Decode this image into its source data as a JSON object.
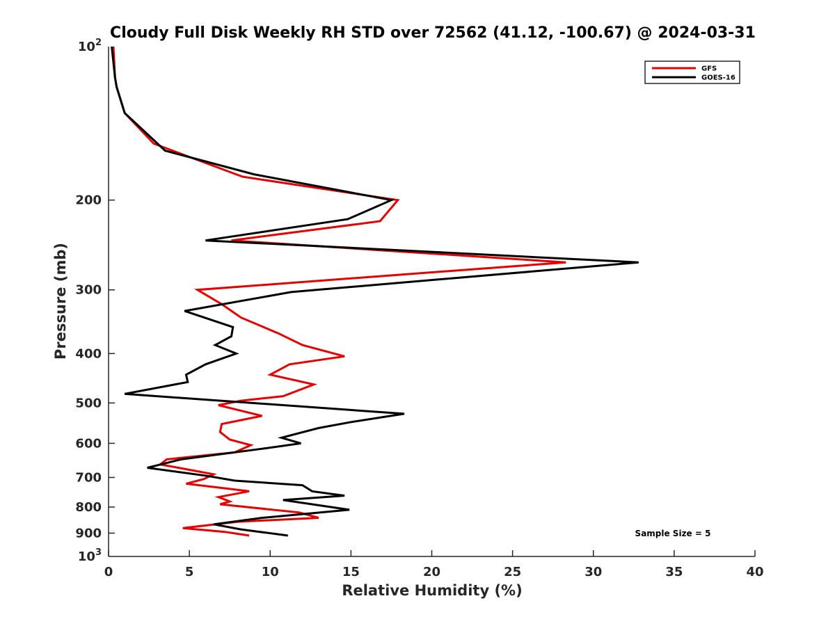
{
  "chart_data": {
    "type": "line",
    "title": "Cloudy Full Disk Weekly RH STD over 72562 (41.12, -100.67) @ 2024-03-31",
    "xlabel": "Relative Humidity (%)",
    "ylabel": "Pressure (mb)",
    "xlim": [
      0,
      40
    ],
    "ylim": [
      100,
      1000
    ],
    "y_scale": "log",
    "y_reversed": true,
    "x_ticks": [
      0,
      5,
      10,
      15,
      20,
      25,
      30,
      35,
      40
    ],
    "x_tick_labels": [
      "0",
      "5",
      "10",
      "15",
      "20",
      "25",
      "30",
      "35",
      "40"
    ],
    "y_ticks": [
      200,
      300,
      400,
      500,
      600,
      700,
      800,
      900
    ],
    "y_tick_labels": [
      "200",
      "300",
      "400",
      "500",
      "600",
      "700",
      "800",
      "900"
    ],
    "y_edge_labels": {
      "top": {
        "base": "10",
        "exp": "2"
      },
      "bottom": {
        "base": "10",
        "exp": "3"
      }
    },
    "grid": false,
    "legend_position": "top-right",
    "annotation": "Sample Size = 5",
    "series": [
      {
        "name": "GFS",
        "color": "#e60000",
        "points": [
          [
            0.3,
            100
          ],
          [
            0.4,
            115
          ],
          [
            0.5,
            120
          ],
          [
            1.0,
            135
          ],
          [
            2.8,
            155
          ],
          [
            8.3,
            180
          ],
          [
            17.9,
            200
          ],
          [
            16.8,
            220
          ],
          [
            7.6,
            240
          ],
          [
            28.3,
            265
          ],
          [
            5.5,
            300
          ],
          [
            7.0,
            320
          ],
          [
            8.2,
            340
          ],
          [
            10.5,
            365
          ],
          [
            12.0,
            385
          ],
          [
            14.6,
            405
          ],
          [
            11.2,
            420
          ],
          [
            10.0,
            440
          ],
          [
            12.7,
            460
          ],
          [
            10.8,
            485
          ],
          [
            8.2,
            495
          ],
          [
            6.8,
            505
          ],
          [
            7.9,
            515
          ],
          [
            9.5,
            530
          ],
          [
            7.0,
            550
          ],
          [
            6.9,
            570
          ],
          [
            7.5,
            590
          ],
          [
            8.8,
            605
          ],
          [
            7.8,
            625
          ],
          [
            3.6,
            645
          ],
          [
            3.2,
            660
          ],
          [
            6.5,
            690
          ],
          [
            5.9,
            705
          ],
          [
            4.8,
            720
          ],
          [
            8.7,
            745
          ],
          [
            6.8,
            765
          ],
          [
            7.5,
            780
          ],
          [
            6.9,
            790
          ],
          [
            11.8,
            820
          ],
          [
            13.0,
            840
          ],
          [
            8.0,
            855
          ],
          [
            4.6,
            880
          ],
          [
            7.2,
            895
          ],
          [
            8.7,
            910
          ]
        ]
      },
      {
        "name": "GOES-16",
        "color": "#000000",
        "points": [
          [
            0.2,
            100
          ],
          [
            0.4,
            115
          ],
          [
            0.5,
            120
          ],
          [
            1.0,
            135
          ],
          [
            3.5,
            160
          ],
          [
            9.0,
            178
          ],
          [
            17.5,
            200
          ],
          [
            14.8,
            218
          ],
          [
            6.0,
            240
          ],
          [
            32.8,
            265
          ],
          [
            11.3,
            303
          ],
          [
            4.7,
            330
          ],
          [
            7.7,
            355
          ],
          [
            7.6,
            370
          ],
          [
            6.6,
            385
          ],
          [
            7.9,
            400
          ],
          [
            6.0,
            420
          ],
          [
            4.8,
            440
          ],
          [
            4.9,
            455
          ],
          [
            1.0,
            480
          ],
          [
            18.3,
            525
          ],
          [
            15.0,
            545
          ],
          [
            13.0,
            560
          ],
          [
            10.7,
            585
          ],
          [
            11.9,
            600
          ],
          [
            9.5,
            615
          ],
          [
            4.5,
            645
          ],
          [
            2.4,
            670
          ],
          [
            6.1,
            695
          ],
          [
            7.8,
            710
          ],
          [
            12.0,
            725
          ],
          [
            12.6,
            745
          ],
          [
            14.6,
            760
          ],
          [
            10.8,
            775
          ],
          [
            14.9,
            810
          ],
          [
            9.5,
            840
          ],
          [
            6.5,
            865
          ],
          [
            8.2,
            885
          ],
          [
            11.1,
            910
          ]
        ]
      }
    ]
  }
}
